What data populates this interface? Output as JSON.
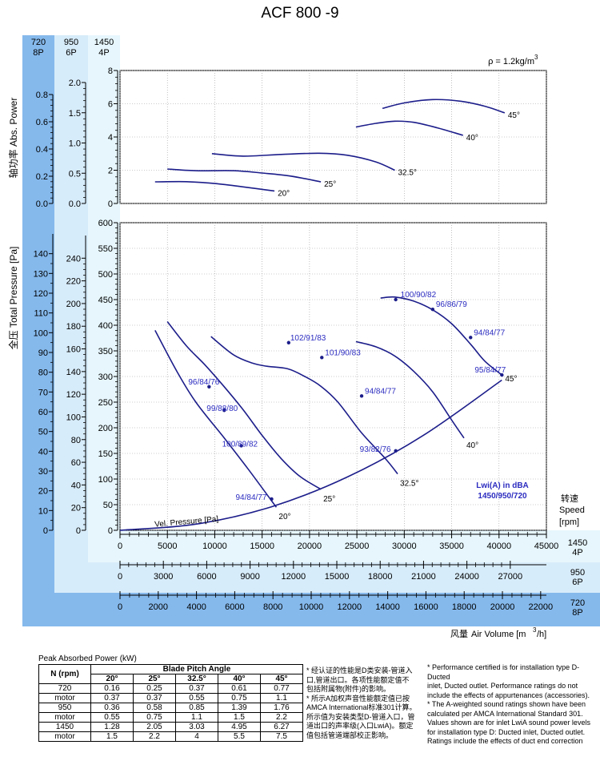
{
  "title": "ACF 800 -9",
  "density": "ρ = 1.2kg/m",
  "density_sup": "3",
  "speed_columns": [
    {
      "rpm": "720",
      "poles": "8P"
    },
    {
      "rpm": "950",
      "poles": "6P"
    },
    {
      "rpm": "1450",
      "poles": "4P"
    }
  ],
  "left_labels": {
    "power": "轴功率 Abs. Power",
    "pressure": "全压 Total Pressure [Pa]"
  },
  "speed_label": {
    "cn": "转速",
    "en": "Speed",
    "unit": "[rpm]"
  },
  "x_axis_title": {
    "cn": "风量",
    "en": "Air Volume [m",
    "sup": "3",
    "tail": "/h]"
  },
  "legend": {
    "line1": "Lwi(A) in dBA",
    "line2": "1450/950/720"
  },
  "vel_pressure_label": "Vel. Pressure [Pa]",
  "colors": {
    "blue_dark": "#85b9ec",
    "blue_light": "#d7ecfa",
    "blue_lighter": "#e6f6fc",
    "curve": "#1c1d8a",
    "label": "#2b2bc0"
  },
  "chart_data": {
    "type": "line",
    "power_chart": {
      "ylabel": "Abs. Power",
      "y_4p": {
        "range": [
          0,
          8
        ],
        "ticks": [
          "0",
          "2",
          "4",
          "6",
          "8"
        ]
      },
      "y_6p": {
        "range": [
          0,
          2.0
        ],
        "ticks": [
          "0.0",
          "0.5",
          "1.0",
          "1.5",
          "2.0"
        ]
      },
      "y_8p": {
        "range": [
          0,
          0.8
        ],
        "ticks": [
          "0.0",
          "0.2",
          "0.4",
          "0.6",
          "0.8"
        ]
      },
      "series": [
        {
          "name": "20°",
          "points": [
            [
              3700,
              1.3
            ],
            [
              7000,
              1.31
            ],
            [
              10000,
              1.2
            ],
            [
              13000,
              1.0
            ],
            [
              16300,
              0.75
            ]
          ]
        },
        {
          "name": "25°",
          "points": [
            [
              5000,
              2.07
            ],
            [
              8000,
              1.97
            ],
            [
              12000,
              1.97
            ],
            [
              15000,
              1.83
            ],
            [
              18000,
              1.65
            ],
            [
              21200,
              1.3
            ]
          ]
        },
        {
          "name": "32.5°",
          "points": [
            [
              9700,
              3.0
            ],
            [
              13000,
              2.85
            ],
            [
              17000,
              2.95
            ],
            [
              21000,
              3.02
            ],
            [
              24000,
              2.9
            ],
            [
              27000,
              2.5
            ],
            [
              29000,
              2.0
            ]
          ]
        },
        {
          "name": "40°",
          "points": [
            [
              24900,
              4.6
            ],
            [
              27000,
              4.82
            ],
            [
              29000,
              4.95
            ],
            [
              31000,
              4.88
            ],
            [
              33500,
              4.55
            ],
            [
              36200,
              4.1
            ]
          ]
        },
        {
          "name": "45°",
          "points": [
            [
              27700,
              5.72
            ],
            [
              30000,
              6.05
            ],
            [
              33000,
              6.25
            ],
            [
              36000,
              6.15
            ],
            [
              38500,
              5.85
            ],
            [
              40600,
              5.45
            ]
          ]
        }
      ]
    },
    "pressure_chart": {
      "ylabel": "Total Pressure [Pa]",
      "y_4p": {
        "range": [
          0,
          600
        ],
        "ticks": [
          "0",
          "50",
          "100",
          "150",
          "200",
          "250",
          "300",
          "350",
          "400",
          "450",
          "500",
          "550",
          "600"
        ]
      },
      "y_6p": {
        "range": [
          0,
          260
        ],
        "ticks": [
          "0",
          "20",
          "40",
          "60",
          "80",
          "100",
          "120",
          "140",
          "160",
          "180",
          "200",
          "220",
          "240"
        ]
      },
      "y_8p": {
        "range": [
          0,
          150
        ],
        "ticks": [
          "0",
          "10",
          "20",
          "30",
          "40",
          "50",
          "60",
          "70",
          "80",
          "90",
          "100",
          "110",
          "120",
          "130",
          "140"
        ]
      },
      "series": [
        {
          "name": "20°",
          "points": [
            [
              3700,
              390
            ],
            [
              6000,
              310
            ],
            [
              8000,
              250
            ],
            [
              11000,
              180
            ],
            [
              13500,
              120
            ],
            [
              15900,
              60
            ],
            [
              16500,
              45
            ]
          ]
        },
        {
          "name": "25°",
          "points": [
            [
              5000,
              407
            ],
            [
              7000,
              360
            ],
            [
              9000,
              322
            ],
            [
              11000,
              280
            ],
            [
              13000,
              235
            ],
            [
              15000,
              185
            ],
            [
              17000,
              140
            ],
            [
              19000,
              105
            ],
            [
              21200,
              80
            ]
          ]
        },
        {
          "name": "32.5°",
          "points": [
            [
              9600,
              378
            ],
            [
              12000,
              342
            ],
            [
              14000,
              326
            ],
            [
              15500,
              320
            ],
            [
              17700,
              315
            ],
            [
              19500,
              300
            ],
            [
              21200,
              281
            ],
            [
              23000,
              250
            ],
            [
              25500,
              190
            ],
            [
              28000,
              140
            ],
            [
              29300,
              110
            ]
          ]
        },
        {
          "name": "40°",
          "points": [
            [
              24900,
              368
            ],
            [
              27000,
              358
            ],
            [
              29000,
              340
            ],
            [
              31000,
              310
            ],
            [
              33000,
              270
            ],
            [
              35000,
              215
            ],
            [
              36300,
              180
            ]
          ]
        },
        {
          "name": "45°",
          "points": [
            [
              27500,
              453
            ],
            [
              29000,
              455
            ],
            [
              31000,
              447
            ],
            [
              33000,
              430
            ],
            [
              35000,
              403
            ],
            [
              37000,
              363
            ],
            [
              38500,
              330
            ],
            [
              40300,
              303
            ]
          ]
        }
      ],
      "velocity_pressure": {
        "name": "Vel. Pressure [Pa]",
        "points": [
          [
            0,
            0
          ],
          [
            8000,
            12
          ],
          [
            16000,
            46
          ],
          [
            24000,
            104
          ],
          [
            32000,
            185
          ],
          [
            40300,
            293
          ]
        ]
      },
      "sound_points": [
        {
          "label": "96/84/76",
          "x": 9400,
          "y": 280
        },
        {
          "label": "99/88/80",
          "x": 11000,
          "y": 234
        },
        {
          "label": "100/89/82",
          "x": 12800,
          "y": 165
        },
        {
          "label": "94/84/77",
          "x": 16000,
          "y": 61
        },
        {
          "label": "102/91/83",
          "x": 17800,
          "y": 366
        },
        {
          "label": "101/90/83",
          "x": 21300,
          "y": 337
        },
        {
          "label": "94/84/77",
          "x": 25500,
          "y": 262
        },
        {
          "label": "93/82/76",
          "x": 29100,
          "y": 155
        },
        {
          "label": "100/90/82",
          "x": 29100,
          "y": 450
        },
        {
          "label": "96/86/79",
          "x": 33000,
          "y": 431
        },
        {
          "label": "94/84/77",
          "x": 37000,
          "y": 376
        },
        {
          "label": "95/84/77",
          "x": 40300,
          "y": 303
        }
      ],
      "angle_labels": [
        "20°",
        "25°",
        "32.5°",
        "40°",
        "45°"
      ]
    },
    "x_4p": {
      "label": "1450 4P",
      "range": [
        0,
        45000
      ],
      "ticks": [
        "0",
        "5000",
        "10000",
        "15000",
        "20000",
        "25000",
        "30000",
        "35000",
        "40000",
        "45000"
      ]
    },
    "x_6p": {
      "label": "950 6P",
      "range": [
        0,
        29500
      ],
      "ticks": [
        "0",
        "3000",
        "6000",
        "9000",
        "12000",
        "15000",
        "18000",
        "21000",
        "24000",
        "27000"
      ]
    },
    "x_8p": {
      "label": "720 8P",
      "range": [
        0,
        22300
      ],
      "ticks": [
        "0",
        "2000",
        "4000",
        "6000",
        "8000",
        "10000",
        "12000",
        "14000",
        "16000",
        "18000",
        "20000",
        "22000"
      ]
    }
  },
  "power_table": {
    "title": "Peak Absorbed Power (kW)",
    "col_header": "Blade Pitch Angle",
    "row_header": "N (rpm)",
    "angles": [
      "20°",
      "25°",
      "32.5°",
      "40°",
      "45°"
    ],
    "rows": [
      {
        "label": "720",
        "values": [
          "0.16",
          "0.25",
          "0.37",
          "0.61",
          "0.77"
        ]
      },
      {
        "label": "motor",
        "values": [
          "0.37",
          "0.37",
          "0.55",
          "0.75",
          "1.1"
        ]
      },
      {
        "label": "950",
        "values": [
          "0.36",
          "0.58",
          "0.85",
          "1.39",
          "1.76"
        ]
      },
      {
        "label": "motor",
        "values": [
          "0.55",
          "0.75",
          "1.1",
          "1.5",
          "2.2"
        ]
      },
      {
        "label": "1450",
        "values": [
          "1.28",
          "2.05",
          "3.03",
          "4.95",
          "6.27"
        ]
      },
      {
        "label": "motor",
        "values": [
          "1.5",
          "2.2",
          "4",
          "5.5",
          "7.5"
        ]
      }
    ]
  },
  "notes_cn": [
    "* 经认证的性能是D类安装-管道入",
    "口,管道出口。各项性能额定值不",
    "包括附属物(附件)的影响。",
    "* 所示A加权声音性能额定值已按",
    "AMCA International标准301计算。",
    "所示值为安装类型D-管道入口，管",
    "道出口的声率级(入口LwiA)。额定",
    "值包括管道端部校正影响。"
  ],
  "notes_en": [
    "* Performance certified is for installation type D-Ducted",
    "inlet, Ducted outlet. Performance ratings do not",
    "include the effects of appurtenances (accessories).",
    "* The A-weighted sound ratings shown have been",
    "calculated per AMCA International Standard 301.",
    "Values shown are for inlet LwiA sound power levels",
    "for installation type D: Ducted inlet, Ducted outlet.",
    "Ratings include the effects of duct end correction"
  ]
}
